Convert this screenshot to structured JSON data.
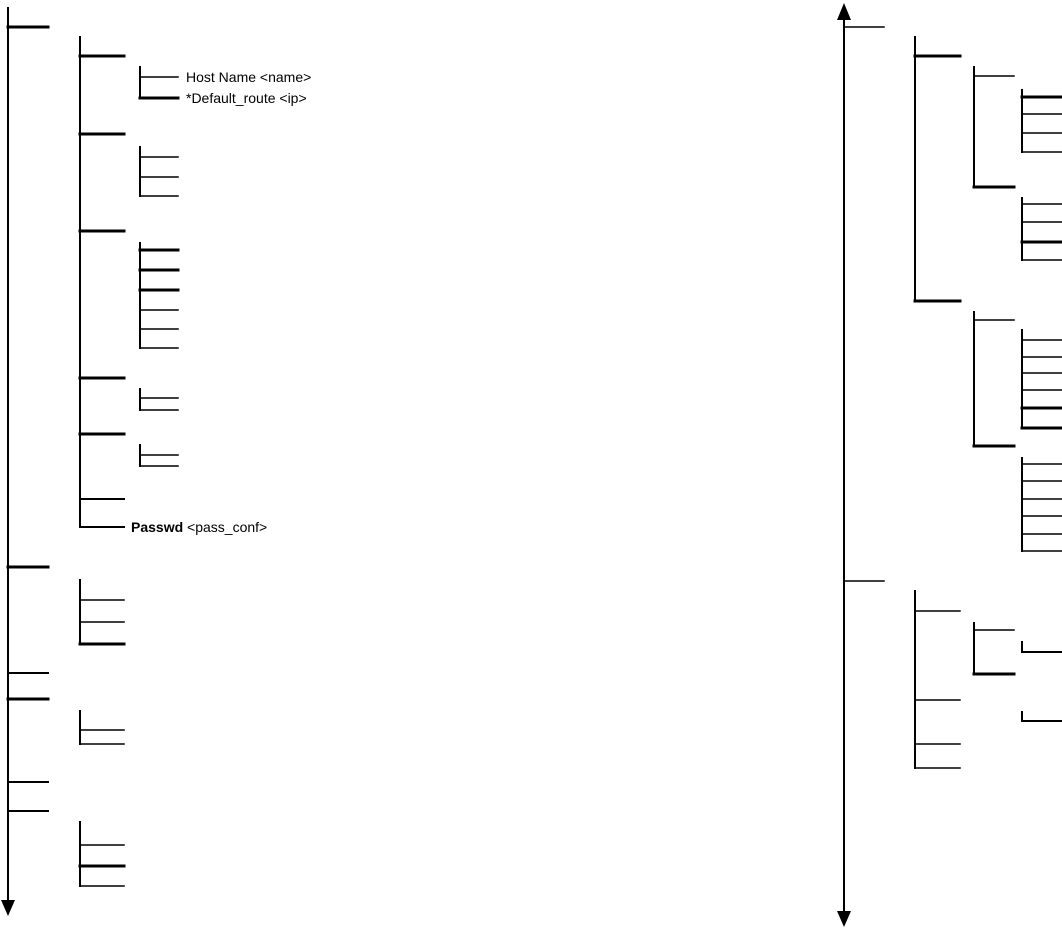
{
  "diagram": {
    "left_tree": {
      "labels": {
        "host_name": "Host Name  <name>",
        "default_route": "*Default_route <ip>",
        "passwd_keyword": "Passwd",
        "passwd_arg": " <pass_conf>"
      }
    },
    "right_tree": {}
  }
}
